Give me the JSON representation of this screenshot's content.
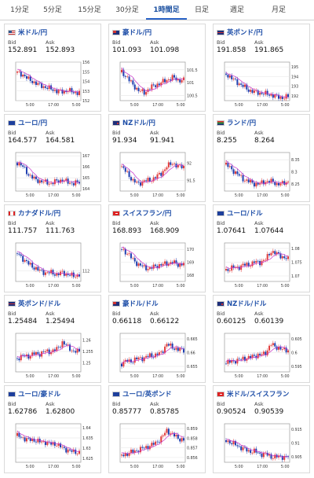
{
  "timeframes": [
    {
      "label": "1分足",
      "active": false
    },
    {
      "label": "5分足",
      "active": false
    },
    {
      "label": "15分足",
      "active": false
    },
    {
      "label": "30分足",
      "active": false
    },
    {
      "label": "1時間足",
      "active": true
    },
    {
      "label": "日足",
      "active": false
    },
    {
      "label": "週足",
      "active": false
    },
    {
      "label": "月足",
      "active": false
    }
  ],
  "bid_label": "Bid",
  "ask_label": "Ask",
  "colors": {
    "up": "#e23b3b",
    "down": "#1f3fb0",
    "ma": "#c832c8",
    "title": "#1f4fa8"
  },
  "pairs": [
    {
      "name": "米ドル/円",
      "flag": "us",
      "bid": "152.891",
      "ask": "152.893",
      "yticks": [
        "156",
        "155",
        "154",
        "153",
        "152"
      ],
      "xticks": [
        "5:00",
        "17:00",
        "5:00"
      ],
      "ylim": [
        152,
        156
      ],
      "trend": [
        154.9,
        154.7,
        154.2,
        153.9,
        153.6,
        153.4,
        153.2,
        153.0,
        152.9,
        153.1,
        152.8,
        152.9
      ]
    },
    {
      "name": "豪ドル/円",
      "flag": "au",
      "bid": "101.093",
      "ask": "101.098",
      "yticks": [
        "101.5",
        "101",
        "100.5"
      ],
      "xticks": [
        "5:00",
        "17:00",
        "5:00"
      ],
      "ylim": [
        100.3,
        101.8
      ],
      "trend": [
        101.4,
        101.2,
        100.9,
        100.7,
        100.6,
        100.8,
        100.9,
        101.0,
        101.1,
        101.2,
        101.1,
        101.1
      ]
    },
    {
      "name": "英ポンド/円",
      "flag": "gb",
      "bid": "191.858",
      "ask": "191.865",
      "yticks": [
        "195",
        "194",
        "193",
        "192"
      ],
      "xticks": [
        "5:00",
        "17:00",
        "5:00"
      ],
      "ylim": [
        191.5,
        195.5
      ],
      "trend": [
        194.3,
        193.8,
        193.4,
        193.0,
        192.6,
        192.4,
        192.3,
        192.2,
        192.1,
        191.9,
        191.8,
        191.9
      ]
    },
    {
      "name": "ユーロ/円",
      "flag": "eu",
      "bid": "164.577",
      "ask": "164.581",
      "yticks": [
        "167",
        "166",
        "165",
        "164"
      ],
      "xticks": [
        "5:00",
        "17:00",
        "5:00"
      ],
      "ylim": [
        163.8,
        167.3
      ],
      "trend": [
        166.4,
        166.0,
        165.3,
        164.9,
        164.7,
        164.6,
        164.5,
        164.7,
        164.8,
        164.6,
        164.5,
        164.6
      ]
    },
    {
      "name": "NZドル/円",
      "flag": "nz",
      "bid": "91.934",
      "ask": "91.941",
      "yticks": [
        "92",
        "91.5"
      ],
      "xticks": [
        "5:00",
        "17:00",
        "5:00"
      ],
      "ylim": [
        91.2,
        92.3
      ],
      "trend": [
        91.9,
        91.7,
        91.5,
        91.4,
        91.5,
        91.5,
        91.6,
        91.7,
        91.9,
        92.0,
        91.9,
        91.9
      ]
    },
    {
      "name": "ランド/円",
      "flag": "za",
      "bid": "8.255",
      "ask": "8.264",
      "yticks": [
        "8.35",
        "8.3",
        "8.25"
      ],
      "xticks": [
        "5:00",
        "17:00",
        "5:00"
      ],
      "ylim": [
        8.22,
        8.38
      ],
      "trend": [
        8.33,
        8.31,
        8.29,
        8.27,
        8.26,
        8.25,
        8.25,
        8.26,
        8.26,
        8.25,
        8.25,
        8.26
      ]
    },
    {
      "name": "カナダドル/円",
      "flag": "ca",
      "bid": "111.757",
      "ask": "111.763",
      "yticks": [
        "112"
      ],
      "xticks": [
        "5:00",
        "17:00",
        "5:00"
      ],
      "ylim": [
        111.4,
        113.6
      ],
      "trend": [
        113.0,
        112.7,
        112.4,
        112.2,
        112.0,
        111.9,
        111.9,
        111.8,
        111.9,
        111.8,
        111.7,
        111.8
      ]
    },
    {
      "name": "スイスフラン/円",
      "flag": "ch",
      "bid": "168.893",
      "ask": "168.909",
      "yticks": [
        "170",
        "169",
        "168"
      ],
      "xticks": [
        "5:00",
        "17:00",
        "5:00"
      ],
      "ylim": [
        167.5,
        170.5
      ],
      "trend": [
        170.0,
        169.7,
        169.2,
        168.8,
        168.6,
        168.5,
        168.7,
        168.8,
        168.9,
        169.0,
        168.8,
        168.9
      ]
    },
    {
      "name": "ユーロ/ドル",
      "flag": "eu",
      "bid": "1.07641",
      "ask": "1.07644",
      "yticks": [
        "1.08",
        "1.075",
        "1.07"
      ],
      "xticks": [
        "5:00",
        "17:00",
        "5:00"
      ],
      "ylim": [
        1.068,
        1.082
      ],
      "trend": [
        1.072,
        1.073,
        1.073,
        1.074,
        1.074,
        1.075,
        1.075,
        1.076,
        1.079,
        1.078,
        1.077,
        1.076
      ]
    },
    {
      "name": "英ポンド/ドル",
      "flag": "gb",
      "bid": "1.25484",
      "ask": "1.25494",
      "yticks": [
        "1.26",
        "1.255",
        "1.25"
      ],
      "xticks": [
        "5:00",
        "17:00",
        "5:00"
      ],
      "ylim": [
        1.246,
        1.263
      ],
      "trend": [
        1.252,
        1.253,
        1.253,
        1.254,
        1.254,
        1.255,
        1.255,
        1.256,
        1.259,
        1.257,
        1.255,
        1.255
      ]
    },
    {
      "name": "豪ドル/ドル",
      "flag": "au",
      "bid": "0.66118",
      "ask": "0.66122",
      "yticks": [
        "0.665",
        "0.66",
        "0.655"
      ],
      "xticks": [
        "5:00",
        "17:00",
        "5:00"
      ],
      "ylim": [
        0.653,
        0.667
      ],
      "trend": [
        0.656,
        0.657,
        0.657,
        0.658,
        0.658,
        0.659,
        0.659,
        0.66,
        0.663,
        0.662,
        0.661,
        0.661
      ]
    },
    {
      "name": "NZドル/ドル",
      "flag": "nz",
      "bid": "0.60125",
      "ask": "0.60139",
      "yticks": [
        "0.605",
        "0.6",
        "0.595"
      ],
      "xticks": [
        "5:00",
        "17:00",
        "5:00"
      ],
      "ylim": [
        0.593,
        0.607
      ],
      "trend": [
        0.596,
        0.597,
        0.597,
        0.598,
        0.598,
        0.599,
        0.599,
        0.6,
        0.603,
        0.602,
        0.601,
        0.601
      ]
    },
    {
      "name": "ユーロ/豪ドル",
      "flag": "eu",
      "bid": "1.62786",
      "ask": "1.62800",
      "yticks": [
        "1.64",
        "1.635",
        "1.63",
        "1.625"
      ],
      "xticks": [
        "5:00",
        "17:00",
        "5:00"
      ],
      "ylim": [
        1.623,
        1.642
      ],
      "trend": [
        1.636,
        1.635,
        1.634,
        1.634,
        1.633,
        1.633,
        1.632,
        1.632,
        1.63,
        1.629,
        1.628,
        1.628
      ]
    },
    {
      "name": "ユーロ/英ポンド",
      "flag": "eu",
      "bid": "0.85777",
      "ask": "0.85785",
      "yticks": [
        "0.859",
        "0.858",
        "0.857",
        "0.856"
      ],
      "xticks": [
        "5:00",
        "17:00",
        "5:00"
      ],
      "ylim": [
        0.8555,
        0.8595
      ],
      "trend": [
        0.8562,
        0.8564,
        0.8566,
        0.8568,
        0.857,
        0.8572,
        0.8575,
        0.858,
        0.8588,
        0.8584,
        0.858,
        0.8578
      ]
    },
    {
      "name": "米ドル/スイスフラン",
      "flag": "ch",
      "bid": "0.90524",
      "ask": "0.90539",
      "yticks": [
        "0.915",
        "0.91",
        "0.905"
      ],
      "xticks": [
        "5:00",
        "17:00",
        "5:00"
      ],
      "ylim": [
        0.903,
        0.917
      ],
      "trend": [
        0.911,
        0.91,
        0.909,
        0.908,
        0.907,
        0.907,
        0.906,
        0.906,
        0.905,
        0.905,
        0.905,
        0.905
      ]
    }
  ]
}
